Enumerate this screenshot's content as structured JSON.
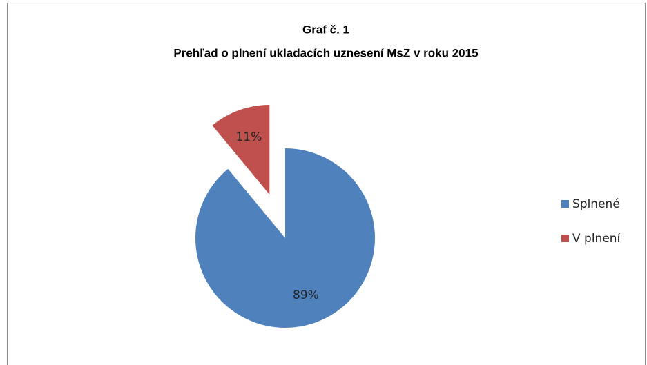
{
  "chart_data": {
    "type": "pie",
    "title": [
      "Graf č. 1",
      "Prehľad o plnení ukladacích uznesení MsZ v roku 2015"
    ],
    "categories": [
      "Splnené",
      "V plnení"
    ],
    "values": [
      89,
      11
    ],
    "value_labels": [
      "89%",
      "11%"
    ],
    "colors": [
      "#4f81bd",
      "#c0504d"
    ],
    "exploded": [
      false,
      true
    ],
    "legend": "right"
  }
}
